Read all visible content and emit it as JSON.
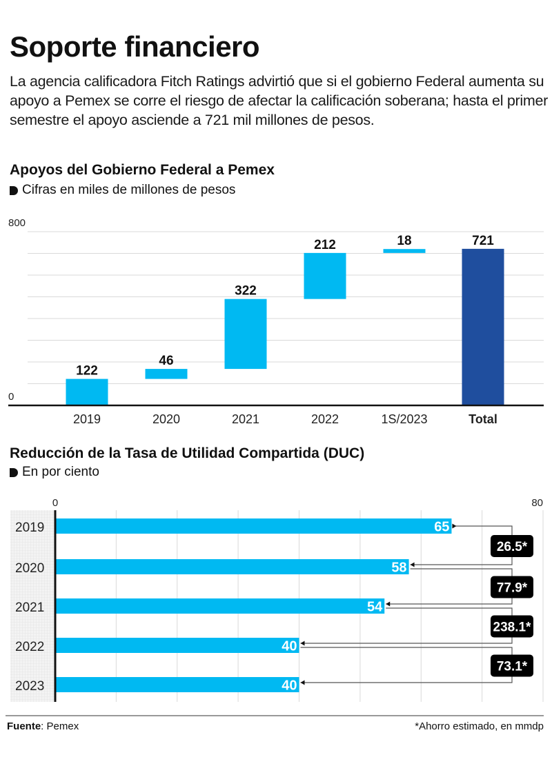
{
  "header": {
    "title": "Soporte financiero",
    "intro": "La agencia calificadora Fitch Ratings advirtió que si el gobierno Federal aumenta su apoyo a Pemex se corre el riesgo de afectar la calificación soberana; hasta el primer semestre el apoyo asciende a 721 mil millones de pesos."
  },
  "colors": {
    "light_blue": "#00B9F2",
    "dark_blue": "#1F4E9E",
    "gridline": "#d9d9d9",
    "axis": "#111111",
    "label_box": "#000000"
  },
  "chart_data": [
    {
      "type": "bar",
      "subtype": "waterfall",
      "title": "Apoyos del Gobierno Federal a Pemex",
      "subtitle": "Cifras en miles de millones de pesos",
      "categories": [
        "2019",
        "2020",
        "2021",
        "2022",
        "1S/2023",
        "Total"
      ],
      "values": [
        122,
        46,
        322,
        212,
        18,
        721
      ],
      "value_labels": [
        "122",
        "46",
        "322",
        "212",
        "18",
        "721"
      ],
      "is_total": [
        false,
        false,
        false,
        false,
        false,
        true
      ],
      "ylim": [
        0,
        800
      ],
      "y_tick_labels": [
        "0",
        "800"
      ],
      "gridline_step": 100,
      "grid": true,
      "xlabel": "",
      "ylabel": ""
    },
    {
      "type": "bar",
      "orientation": "horizontal",
      "title": "Reducción de la Tasa de Utilidad Compartida (DUC)",
      "subtitle": "En por ciento",
      "categories": [
        "2019",
        "2020",
        "2021",
        "2022",
        "2023"
      ],
      "values": [
        65,
        58,
        54,
        40,
        40
      ],
      "value_labels": [
        "65",
        "58",
        "54",
        "40",
        "40"
      ],
      "xlim": [
        0,
        80
      ],
      "x_tick_labels": [
        "0",
        "80"
      ],
      "gridline_step": 10,
      "grid": true,
      "annotations": [
        {
          "from": "2019",
          "to": "2020",
          "label": "26.5*"
        },
        {
          "from": "2020",
          "to": "2021",
          "label": "77.9*"
        },
        {
          "from": "2021",
          "to": "2022",
          "label": "238.1*"
        },
        {
          "from": "2022",
          "to": "2023",
          "label": "73.1*"
        }
      ]
    }
  ],
  "footer": {
    "source_label": "Fuente",
    "source_value": ": Pemex",
    "note": "*Ahorro estimado, en mmdp"
  }
}
